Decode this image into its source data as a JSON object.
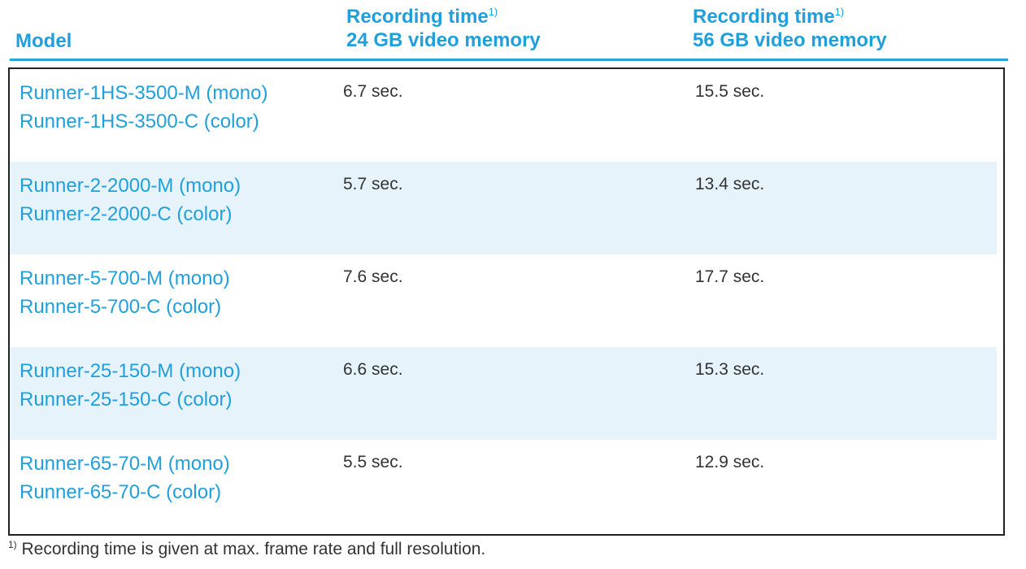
{
  "header": {
    "model": "Model",
    "col1_line1": "Recording time",
    "col1_sup": "1)",
    "col1_line2": "24 GB video memory",
    "col2_line1": "Recording time",
    "col2_sup": "1)",
    "col2_line2": "56 GB video memory"
  },
  "rows": [
    {
      "model_mono": "Runner-1HS-3500-M (mono)",
      "model_color": "Runner-1HS-3500-C (color)",
      "time_24gb": "6.7 sec.",
      "time_56gb": "15.5 sec."
    },
    {
      "model_mono": "Runner-2-2000-M (mono)",
      "model_color": "Runner-2-2000-C (color)",
      "time_24gb": "5.7 sec.",
      "time_56gb": "13.4 sec."
    },
    {
      "model_mono": "Runner-5-700-M (mono)",
      "model_color": "Runner-5-700-C (color)",
      "time_24gb": "7.6 sec.",
      "time_56gb": "17.7 sec."
    },
    {
      "model_mono": "Runner-25-150-M (mono)",
      "model_color": "Runner-25-150-C (color)",
      "time_24gb": "6.6 sec.",
      "time_56gb": "15.3 sec."
    },
    {
      "model_mono": "Runner-65-70-M (mono)",
      "model_color": "Runner-65-70-C (color)",
      "time_24gb": "5.5 sec.",
      "time_56gb": "12.9 sec."
    }
  ],
  "footnote": {
    "marker": "1)",
    "text": " Recording time is given at max. frame rate and full resolution."
  },
  "colors": {
    "accent_blue": "#1fa0dc",
    "row_shade": "#e7f3fb",
    "text_dark": "#333333",
    "border": "#222222"
  }
}
